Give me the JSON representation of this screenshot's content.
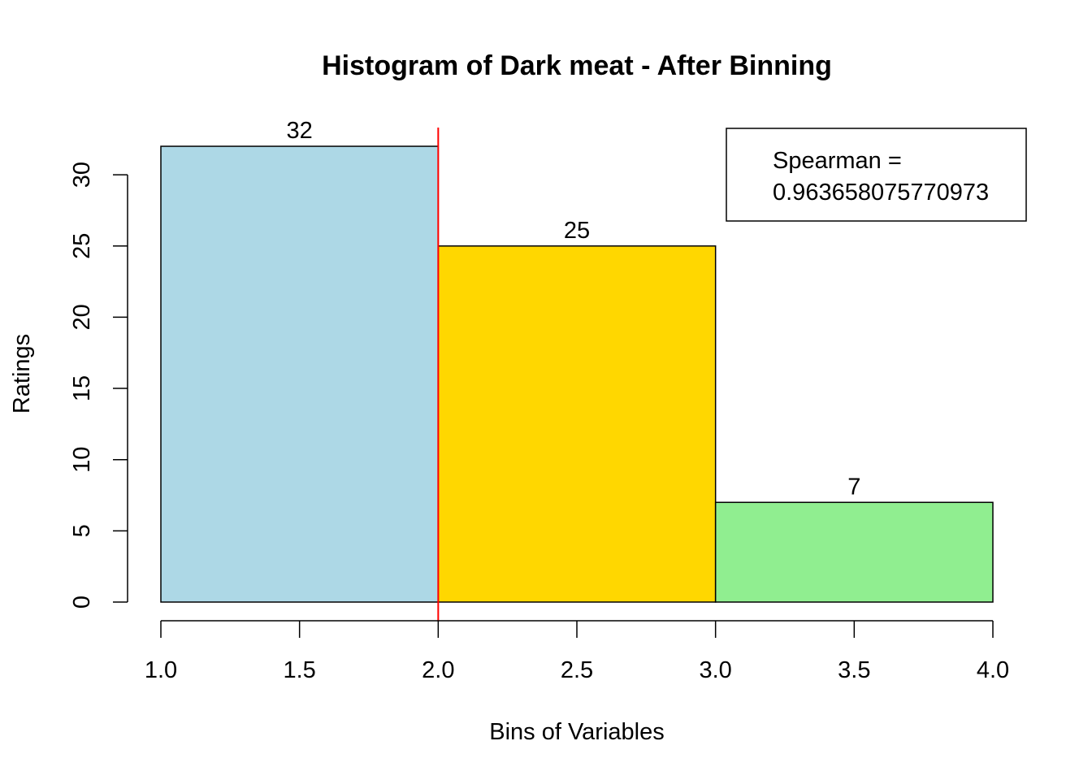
{
  "chart_data": {
    "type": "bar",
    "title": "Histogram of Dark meat - After Binning",
    "xlabel": "Bins of Variables",
    "ylabel": "Ratings",
    "bins": [
      {
        "x0": 1.0,
        "x1": 2.0,
        "value": 32,
        "label": "32",
        "color": "#ADD8E6"
      },
      {
        "x0": 2.0,
        "x1": 3.0,
        "value": 25,
        "label": "25",
        "color": "#FFD700"
      },
      {
        "x0": 3.0,
        "x1": 4.0,
        "value": 7,
        "label": "7",
        "color": "#90EE90"
      }
    ],
    "xlim": [
      1.0,
      4.0
    ],
    "ylim": [
      0,
      32
    ],
    "x_ticks": [
      1.0,
      1.5,
      2.0,
      2.5,
      3.0,
      3.5,
      4.0
    ],
    "x_tick_labels": [
      "1.0",
      "1.5",
      "2.0",
      "2.5",
      "3.0",
      "3.5",
      "4.0"
    ],
    "y_ticks": [
      0,
      5,
      10,
      15,
      20,
      25,
      30
    ],
    "y_tick_labels": [
      "0",
      "5",
      "10",
      "15",
      "20",
      "25",
      "30"
    ],
    "vline": {
      "x": 2.0,
      "color": "#FF0000"
    },
    "legend": {
      "position": "top-right",
      "lines": [
        "Spearman =",
        "0.963658075770973"
      ]
    },
    "grid": false
  }
}
